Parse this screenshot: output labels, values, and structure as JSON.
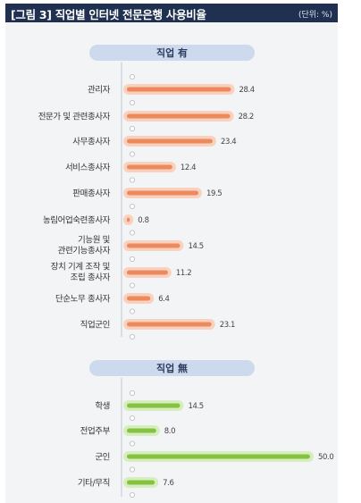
{
  "header": {
    "title": "[그림 3]  직업별 인터넷 전문은행 사용비율",
    "unit": "(단위: %)"
  },
  "colors": {
    "header_bg": "#1f3050",
    "panel_bg": "#f3f4f6",
    "section_pill": "#cdd9ec",
    "orange_bar": "#ec8a5e",
    "orange_halo": "#f8d2bf",
    "green_bar": "#86c241",
    "green_halo": "#d6edbd",
    "axis": "#c2c6cc"
  },
  "chart_data": [
    {
      "type": "bar",
      "orientation": "horizontal",
      "group_label": "직업 有",
      "xlim": [
        0,
        50
      ],
      "categories": [
        [
          "관리자"
        ],
        [
          "전문가 및 관련종사자"
        ],
        [
          "사무종사자"
        ],
        [
          "서비스종사자"
        ],
        [
          "판매종사자"
        ],
        [
          "농림어업숙련종사자"
        ],
        [
          "기능원 및",
          "관련기능종사자"
        ],
        [
          "장치 기계 조작 및",
          "조립 종사자"
        ],
        [
          "단순노무 종사자"
        ],
        [
          "직업군인"
        ]
      ],
      "values": [
        28.4,
        28.2,
        23.4,
        12.4,
        19.5,
        0.8,
        14.5,
        11.2,
        6.4,
        23.1
      ],
      "value_labels": [
        "28.4",
        "28.2",
        "23.4",
        "12.4",
        "19.5",
        "0.8",
        "14.5",
        "11.2",
        "6.4",
        "23.1"
      ],
      "color": "orange"
    },
    {
      "type": "bar",
      "orientation": "horizontal",
      "group_label": "직업 無",
      "xlim": [
        0,
        50
      ],
      "categories": [
        [
          "학생"
        ],
        [
          "전업주부"
        ],
        [
          "군인"
        ],
        [
          "기타/무직"
        ]
      ],
      "values": [
        14.5,
        8.0,
        50.0,
        7.6
      ],
      "value_labels": [
        "14.5",
        "8.0",
        "50.0",
        "7.6"
      ],
      "color": "green"
    }
  ]
}
